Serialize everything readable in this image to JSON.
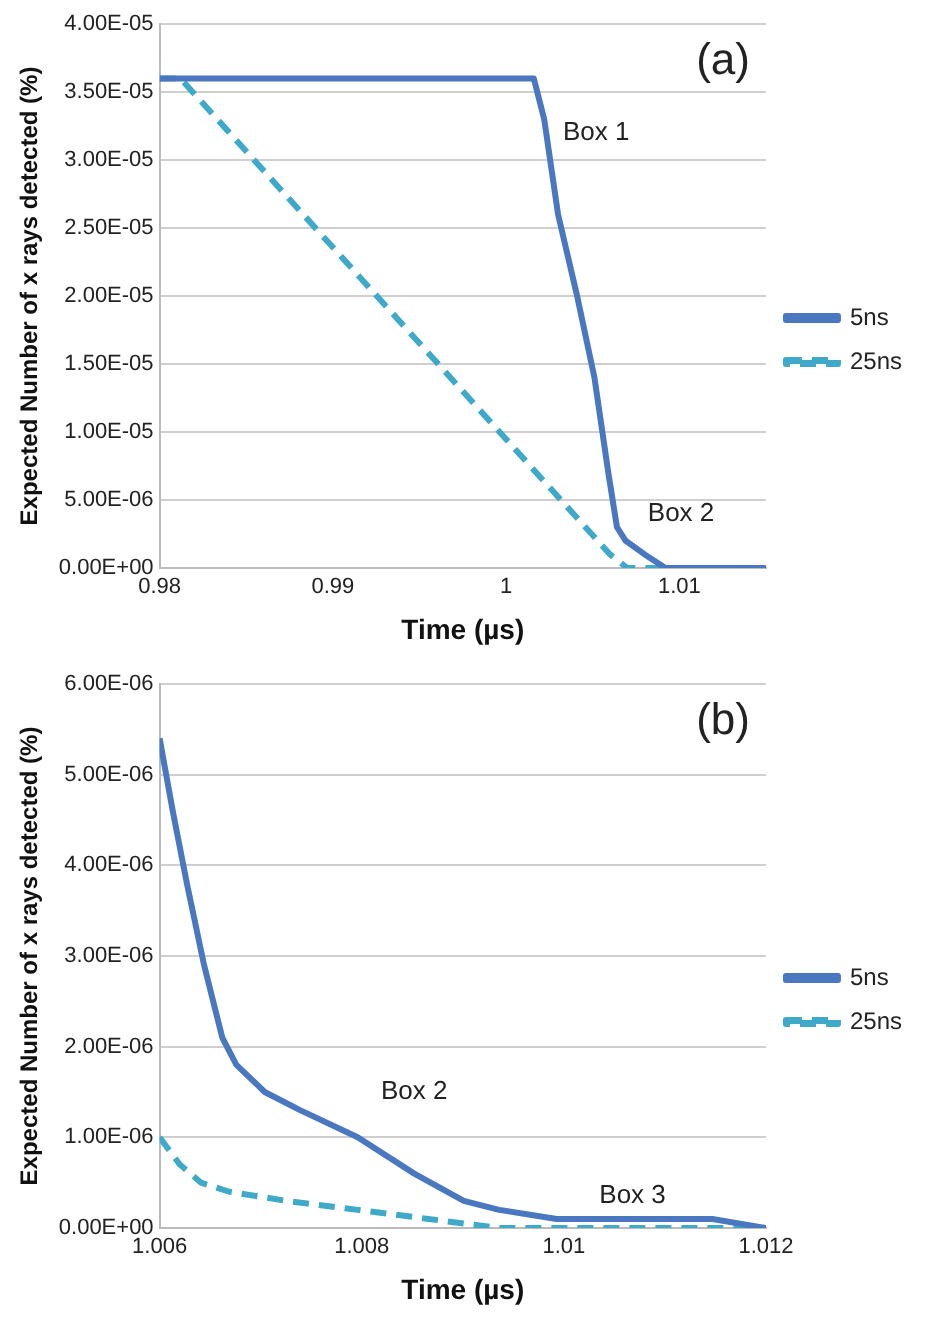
{
  "chart_data": [
    {
      "type": "line",
      "xlabel": "Time (µs)",
      "ylabel": "Expected Number of x rays detected (%)",
      "xlim": [
        0.98,
        1.015
      ],
      "xticks": [
        0.98,
        0.99,
        1,
        1.01
      ],
      "ylim": [
        0,
        4e-05
      ],
      "yticks": [
        {
          "value": 0,
          "label": "0.00E+00"
        },
        {
          "value": 5e-06,
          "label": "5.00E-06"
        },
        {
          "value": 1e-05,
          "label": "1.00E-05"
        },
        {
          "value": 1.5e-05,
          "label": "1.50E-05"
        },
        {
          "value": 2e-05,
          "label": "2.00E-05"
        },
        {
          "value": 2.5e-05,
          "label": "2.50E-05"
        },
        {
          "value": 3e-05,
          "label": "3.00E-05"
        },
        {
          "value": 3.5e-05,
          "label": "3.50E-05"
        },
        {
          "value": 4e-05,
          "label": "4.00E-05"
        }
      ],
      "grid": "y",
      "legend": "right",
      "marker": "none",
      "annotations": [
        "(a)",
        "Box 1",
        "Box 2"
      ],
      "series": [
        {
          "name": "5ns",
          "color": "#4a78c0",
          "line_style": "solid",
          "x": [
            0.98,
            1.001,
            1.0016,
            1.0022,
            1.003,
            1.0041,
            1.0051,
            1.0059,
            1.0064,
            1.0069,
            1.008,
            1.0092,
            1.0104,
            1.015
          ],
          "values": [
            3.6e-05,
            3.6e-05,
            3.6e-05,
            3.3e-05,
            2.6e-05,
            2e-05,
            1.4e-05,
            7e-06,
            3e-06,
            2e-06,
            1e-06,
            0,
            0,
            0
          ]
        },
        {
          "name": "25ns",
          "color": "#3fa9c9",
          "line_style": "dashed",
          "x": [
            0.98,
            0.9812,
            1.006,
            1.007,
            1.015
          ],
          "values": [
            3.6e-05,
            3.6e-05,
            1e-06,
            0,
            0
          ]
        }
      ]
    },
    {
      "type": "line",
      "xlabel": "Time (µs)",
      "ylabel": "Expected Number of x rays detected (%)",
      "xlim": [
        1.006,
        1.012
      ],
      "xticks": [
        1.006,
        1.008,
        1.01,
        1.012
      ],
      "ylim": [
        0,
        6e-06
      ],
      "yticks": [
        {
          "value": 0,
          "label": "0.00E+00"
        },
        {
          "value": 1e-06,
          "label": "1.00E-06"
        },
        {
          "value": 2e-06,
          "label": "2.00E-06"
        },
        {
          "value": 3e-06,
          "label": "3.00E-06"
        },
        {
          "value": 4e-06,
          "label": "4.00E-06"
        },
        {
          "value": 5e-06,
          "label": "5.00E-06"
        },
        {
          "value": 6e-06,
          "label": "6.00E-06"
        }
      ],
      "grid": "y",
      "legend": "right",
      "marker": "none",
      "annotations": [
        "(b)",
        "Box 2",
        "Box 3"
      ],
      "series": [
        {
          "name": "5ns",
          "color": "#4a78c0",
          "line_style": "solid",
          "x": [
            1.006,
            1.00613,
            1.00627,
            1.00644,
            1.00662,
            1.00676,
            1.00704,
            1.00739,
            1.00796,
            1.00852,
            1.00901,
            1.00936,
            1.00993,
            1.01077,
            1.01147,
            1.012
          ],
          "values": [
            5.4e-06,
            4.6e-06,
            3.8e-06,
            2.9e-06,
            2.1e-06,
            1.8e-06,
            1.5e-06,
            1.3e-06,
            1e-06,
            6e-07,
            3e-07,
            2e-07,
            1e-07,
            1e-07,
            1e-07,
            0
          ]
        },
        {
          "name": "25ns",
          "color": "#3fa9c9",
          "line_style": "dashed",
          "x": [
            1.006,
            1.0062,
            1.00641,
            1.00669,
            1.00725,
            1.00796,
            1.00866,
            1.00936,
            1.01007,
            1.012
          ],
          "values": [
            1e-06,
            7e-07,
            5e-07,
            4e-07,
            3e-07,
            2e-07,
            1e-07,
            0,
            0,
            0
          ]
        }
      ]
    }
  ]
}
